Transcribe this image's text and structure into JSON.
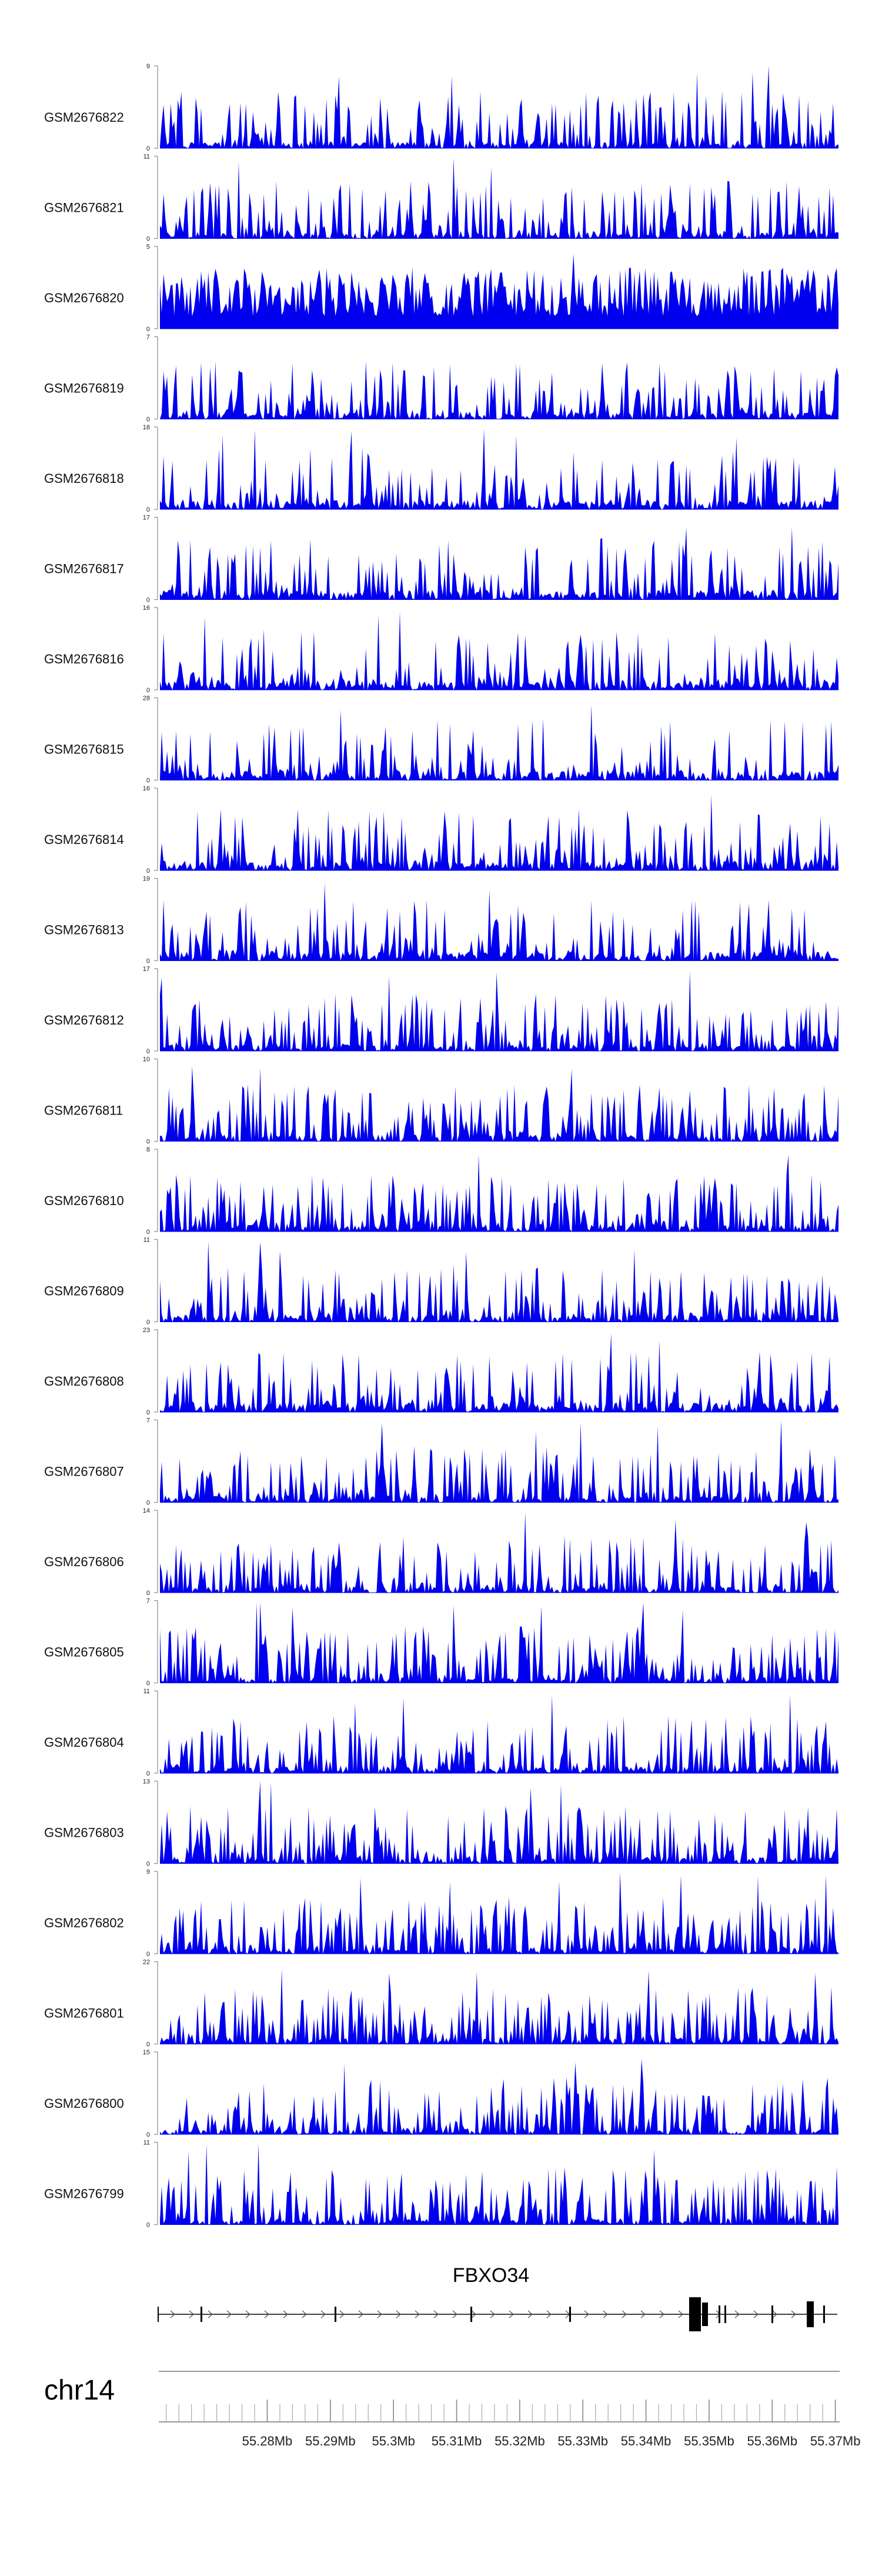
{
  "chart_data": {
    "type": "area",
    "title": "",
    "chromosome": "chr14",
    "gene": {
      "name": "FBXO34",
      "strand": "+"
    },
    "xlim_mb": [
      55.263,
      55.3705
    ],
    "x_ticks": [
      55.28,
      55.29,
      55.3,
      55.31,
      55.32,
      55.33,
      55.34,
      55.35,
      55.36,
      55.37
    ],
    "x_tick_labels": [
      "55.28Mb",
      "55.29Mb",
      "55.3Mb",
      "55.31Mb",
      "55.32Mb",
      "55.33Mb",
      "55.34Mb",
      "55.35Mb",
      "55.36Mb",
      "55.37Mb"
    ],
    "bar_color": "#0000ee",
    "tracks": [
      {
        "name": "GSM2676822",
        "ymax": 9
      },
      {
        "name": "GSM2676821",
        "ymax": 11
      },
      {
        "name": "GSM2676820",
        "ymax": 5
      },
      {
        "name": "GSM2676819",
        "ymax": 7
      },
      {
        "name": "GSM2676818",
        "ymax": 18
      },
      {
        "name": "GSM2676817",
        "ymax": 17
      },
      {
        "name": "GSM2676816",
        "ymax": 16
      },
      {
        "name": "GSM2676815",
        "ymax": 28
      },
      {
        "name": "GSM2676814",
        "ymax": 16
      },
      {
        "name": "GSM2676813",
        "ymax": 19
      },
      {
        "name": "GSM2676812",
        "ymax": 17
      },
      {
        "name": "GSM2676811",
        "ymax": 10
      },
      {
        "name": "GSM2676810",
        "ymax": 8
      },
      {
        "name": "GSM2676809",
        "ymax": 11
      },
      {
        "name": "GSM2676808",
        "ymax": 23
      },
      {
        "name": "GSM2676807",
        "ymax": 7
      },
      {
        "name": "GSM2676806",
        "ymax": 14
      },
      {
        "name": "GSM2676805",
        "ymax": 7
      },
      {
        "name": "GSM2676804",
        "ymax": 11
      },
      {
        "name": "GSM2676803",
        "ymax": 13
      },
      {
        "name": "GSM2676802",
        "ymax": 9
      },
      {
        "name": "GSM2676801",
        "ymax": 22
      },
      {
        "name": "GSM2676800",
        "ymax": 15
      },
      {
        "name": "GSM2676799",
        "ymax": 11
      }
    ]
  }
}
